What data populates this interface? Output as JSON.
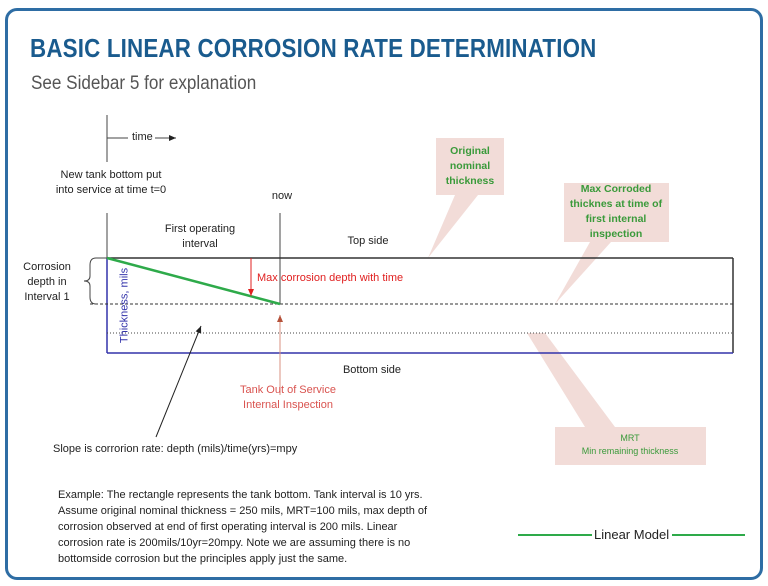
{
  "header": {
    "title": "BASIC LINEAR CORROSION RATE DETERMINATION",
    "subtitle": "See Sidebar 5 for explanation"
  },
  "diagram": {
    "time_label": "time",
    "start_label": [
      "New tank bottom put",
      "into service at time t=0"
    ],
    "now_label": "now",
    "interval_label": [
      "First operating",
      "interval"
    ],
    "top_side": "Top side",
    "bottom_side": "Bottom side",
    "corrosion_depth_label": [
      "Corrosion",
      "depth in",
      "Interval 1"
    ],
    "thickness_axis": "Thickness, mils",
    "max_depth_label": "Max corrosion depth with time",
    "out_of_service_label": [
      "Tank Out of Service",
      "Internal Inspection"
    ],
    "slope_label": "Slope is corrorion rate: depth (mils)/time(yrs)=mpy",
    "callouts": {
      "original": [
        "Original",
        "nominal",
        "thickness"
      ],
      "max_corroded": [
        "Max Corroded",
        "thicknes at time of",
        "first internal",
        "inspection"
      ],
      "mrt": [
        "MRT",
        "Min remaining thickness"
      ]
    },
    "colors": {
      "frame": "#2e6da4",
      "title": "#1a5b8e",
      "linear_model": "#2eaa4a",
      "callout_fill": "#f2dcd8",
      "callout_text": "#3a9a3a",
      "max_depth": "#e02020",
      "thickness_axis": "#3333aa"
    }
  },
  "example": [
    "Example: The rectangle represents the tank bottom. Tank interval is 10 yrs.",
    "Assume original nominal thickness = 250 mils, MRT=100 mils, max depth of",
    "corrosion observed at end of first operating interval is 200 mils. Linear",
    "corrosion rate is 200mils/10yr=20mpy. Note we are assuming there is no",
    "bottomside corrosion but the principles apply just the same."
  ],
  "legend": {
    "linear_model": "Linear Model"
  }
}
